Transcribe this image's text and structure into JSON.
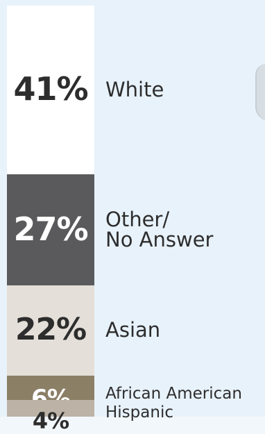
{
  "colors": {
    "background": "#e8f2fb",
    "text_dark": "#2d2d2d",
    "text_light": "#ffffff"
  },
  "chart_data": {
    "type": "bar",
    "orientation": "stacked-vertical",
    "categories": [
      "White",
      "Other/\nNo Answer",
      "Asian",
      "African American",
      "Hispanic"
    ],
    "values": [
      41,
      27,
      22,
      6,
      4
    ],
    "value_labels": [
      "41%",
      "27%",
      "22%",
      "6%",
      "4%"
    ],
    "colors": [
      "#ffffff",
      "#5a5a5c",
      "#e4dfd9",
      "#8b7f66",
      "#bcb3a6"
    ],
    "label_colors": [
      "#2d2d2d",
      "#ffffff",
      "#2d2d2d",
      "#ffffff",
      "#2d2d2d"
    ],
    "title": "",
    "xlabel": "",
    "ylabel": ""
  }
}
